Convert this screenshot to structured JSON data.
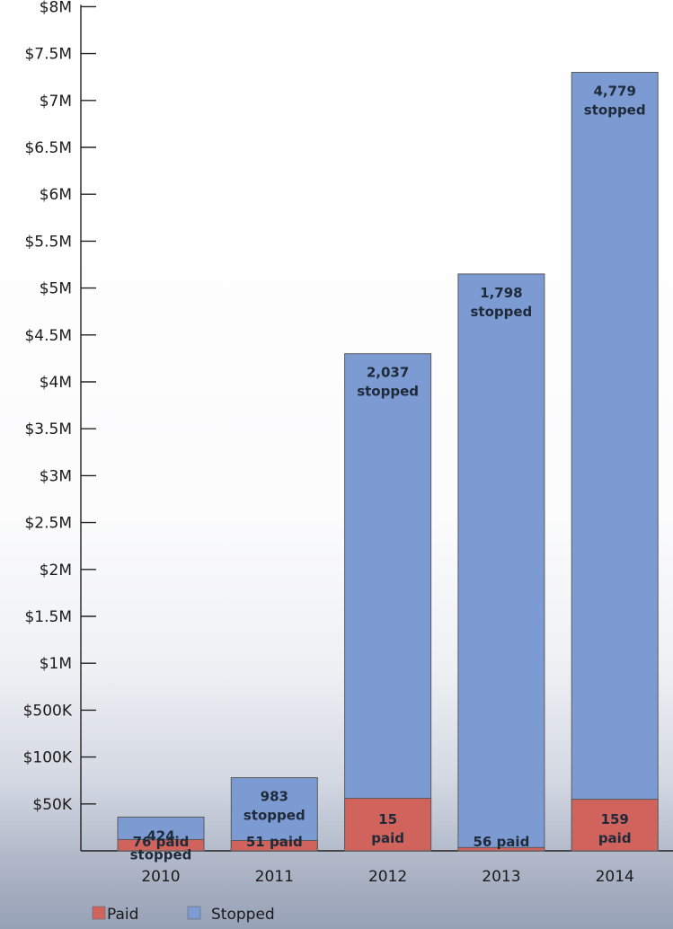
{
  "chart_data": {
    "type": "bar",
    "stacked": true,
    "title": "",
    "xlabel": "",
    "ylabel": "",
    "categories": [
      "2010",
      "2011",
      "2012",
      "2013",
      "2014"
    ],
    "y_ticks": [
      "$8M",
      "$7.5M",
      "$7M",
      "$6.5M",
      "$6M",
      "$5.5M",
      "$5M",
      "$4.5M",
      "$4M",
      "$3.5M",
      "$3M",
      "$2.5M",
      "$2M",
      "$1.5M",
      "$1M",
      "$500K",
      "$100K",
      "$50K"
    ],
    "y_scale_note": "non-linear axis: steps of $50K at bottom, then $100K, $500K, then $0.5M increments",
    "series": [
      {
        "name": "Paid",
        "color": "#d0645c",
        "values_axis_level": [
          "$50K",
          "$48K",
          "$110K",
          "$12K",
          "$110K"
        ],
        "labels": [
          [
            "76 paid"
          ],
          [
            "51 paid"
          ],
          [
            "15",
            "paid"
          ],
          [
            "56 paid"
          ],
          [
            "159",
            "paid"
          ]
        ]
      },
      {
        "name": "Stopped",
        "color": "#7b9bd2",
        "values_axis_level": [
          "$375K",
          "$688K",
          "$4.85M",
          "$5.6M",
          "$7.9M"
        ],
        "labels": [
          [
            "424",
            "stopped"
          ],
          [
            "983",
            "stopped"
          ],
          [
            "2,037",
            "stopped"
          ],
          [
            "1,798",
            "stopped"
          ],
          [
            "4,779",
            "stopped"
          ]
        ]
      }
    ],
    "bar_tops_axis_index": [
      0.72,
      1.56,
      10.6,
      12.3,
      16.6
    ],
    "paid_tops_axis_index": [
      0.24,
      0.22,
      1.12,
      0.07,
      1.1
    ],
    "legend": {
      "position": "bottom-left",
      "entries": [
        "Paid",
        "Stopped"
      ]
    },
    "grid": false
  }
}
